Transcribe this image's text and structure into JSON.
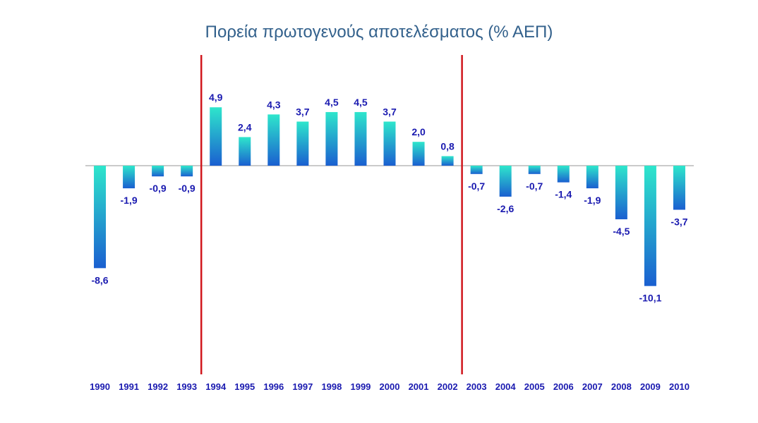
{
  "chart_data": {
    "type": "bar",
    "title": "Πορεία πρωτογενούς αποτελέσματος (% ΑΕΠ)",
    "xlabel": "",
    "ylabel": "",
    "categories": [
      "1990",
      "1991",
      "1992",
      "1993",
      "1994",
      "1995",
      "1996",
      "1997",
      "1998",
      "1999",
      "2000",
      "2001",
      "2002",
      "2003",
      "2004",
      "2005",
      "2006",
      "2007",
      "2008",
      "2009",
      "2010"
    ],
    "values": [
      -8.6,
      -1.9,
      -0.9,
      -0.9,
      4.9,
      2.4,
      4.3,
      3.7,
      4.5,
      4.5,
      3.7,
      2.0,
      0.8,
      -0.7,
      -2.6,
      -0.7,
      -1.4,
      -1.9,
      -4.5,
      -10.1,
      -3.7
    ],
    "value_labels": [
      "-8,6",
      "-1,9",
      "-0,9",
      "-0,9",
      "4,9",
      "2,4",
      "4,3",
      "3,7",
      "4,5",
      "4,5",
      "3,7",
      "2,0",
      "0,8",
      "-0,7",
      "-2,6",
      "-0,7",
      "-1,4",
      "-1,9",
      "-4,5",
      "-10,1",
      "-3,7"
    ],
    "ylim": [
      -17.5,
      12
    ],
    "grid": false,
    "legend": "none",
    "vertical_markers": [
      {
        "after_category": "1993",
        "color": "#d0161c"
      },
      {
        "after_category": "2002",
        "color": "#d0161c"
      }
    ]
  },
  "colors": {
    "title": "#33618c",
    "label": "#1a1ab0",
    "bar_light": "#2ee6cc",
    "bar_dark": "#1a5fd0",
    "axis": "#b8b8b8",
    "marker": "#d0161c"
  }
}
